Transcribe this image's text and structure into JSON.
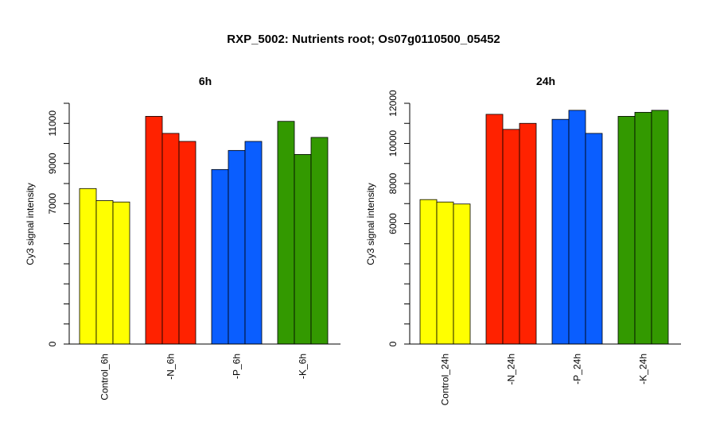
{
  "figure": {
    "title": "RXP_5002: Nutrients root; Os07g0110500_05452"
  },
  "chart_data": [
    {
      "type": "bar",
      "title": "6h",
      "ylabel": "Cy3 signal intensity",
      "ylim": [
        0,
        12000
      ],
      "yticks": [
        0,
        7000,
        9000,
        11000
      ],
      "categories": [
        "Control_6h",
        "-N_6h",
        "-P_6h",
        "-K_6h"
      ],
      "colors": [
        "#ffff00",
        "#ff2200",
        "#0a5eff",
        "#339900"
      ],
      "values": [
        [
          7750,
          7150,
          7080
        ],
        [
          11350,
          10500,
          10100
        ],
        [
          8700,
          9650,
          10100
        ],
        [
          11100,
          9450,
          10300
        ]
      ]
    },
    {
      "type": "bar",
      "title": "24h",
      "ylabel": "Cy3 signal intensity",
      "ylim": [
        0,
        12000
      ],
      "yticks": [
        0,
        6000,
        8000,
        10000,
        12000
      ],
      "categories": [
        "Control_24h",
        "-N_24h",
        "-P_24h",
        "-K_24h"
      ],
      "colors": [
        "#ffff00",
        "#ff2200",
        "#0a5eff",
        "#339900"
      ],
      "values": [
        [
          7200,
          7080,
          6980
        ],
        [
          11450,
          10700,
          11000
        ],
        [
          11200,
          11650,
          10500
        ],
        [
          11350,
          11550,
          11650
        ]
      ]
    }
  ]
}
